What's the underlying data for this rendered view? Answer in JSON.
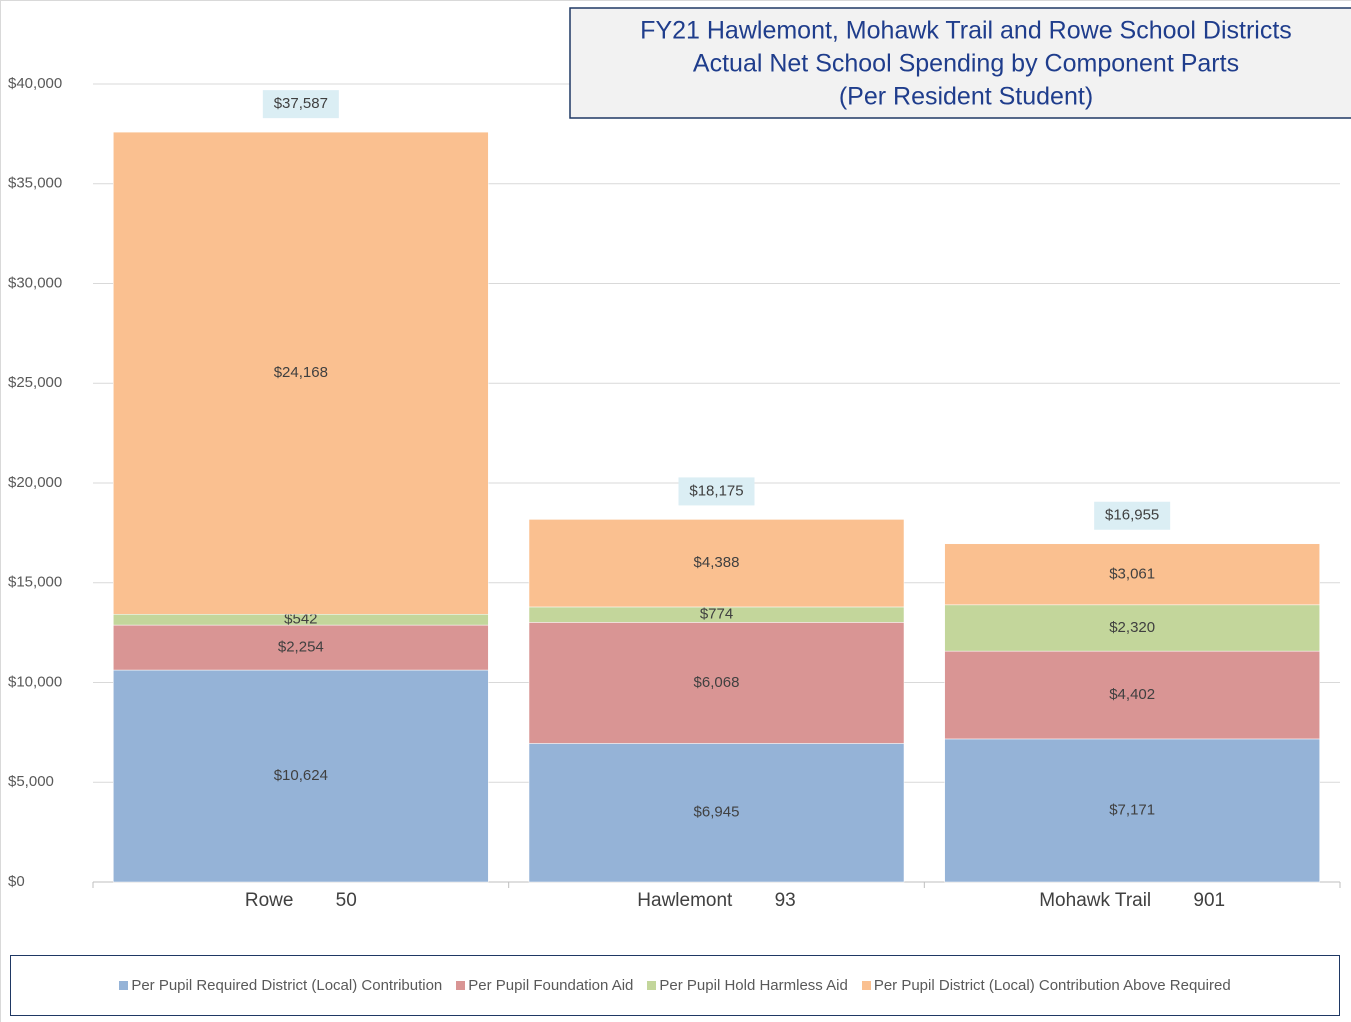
{
  "chart_data": {
    "type": "stacked_bar",
    "title": [
      "FY21 Hawlemont, Mohawk Trail and Rowe School Districts",
      "Actual Net School Spending by Component Parts",
      "(Per Resident Student)"
    ],
    "categories": [
      "Rowe        50",
      "Hawlemont        93",
      "Mohawk Trail        901"
    ],
    "series": [
      {
        "name": "Per Pupil Required District (Local) Contribution",
        "color": "#95b3d7",
        "values": [
          10624,
          6945,
          7171
        ],
        "value_labels": [
          "$10,624",
          "$6,945",
          "$7,171"
        ]
      },
      {
        "name": "Per Pupil Foundation Aid",
        "color": "#d99594",
        "values": [
          2254,
          6068,
          4402
        ],
        "value_labels": [
          "$2,254",
          "$6,068",
          "$4,402"
        ]
      },
      {
        "name": "Per Pupil Hold Harmless Aid",
        "color": "#c3d69b",
        "values": [
          542,
          774,
          2320
        ],
        "value_labels": [
          "$542",
          "$774",
          "$2,320"
        ]
      },
      {
        "name": "Per Pupil District (Local) Contribution Above Required",
        "color": "#fac090",
        "values": [
          24168,
          4388,
          3061
        ],
        "value_labels": [
          "$24,168",
          "$4,388",
          "$3,061"
        ]
      }
    ],
    "totals": [
      37587,
      18175,
      16955
    ],
    "totals_labels": [
      "$37,587",
      "$18,175",
      "$16,955"
    ],
    "ylim": [
      0,
      40000
    ],
    "yticks": [
      {
        "value": 0,
        "label": "$0"
      },
      {
        "value": 5000,
        "label": "$5,000"
      },
      {
        "value": 10000,
        "label": "$10,000"
      },
      {
        "value": 15000,
        "label": "$15,000"
      },
      {
        "value": 20000,
        "label": "$20,000"
      },
      {
        "value": 25000,
        "label": "$25,000"
      },
      {
        "value": 30000,
        "label": "$30,000"
      },
      {
        "value": 35000,
        "label": "$35,000"
      },
      {
        "value": 40000,
        "label": "$40,000"
      }
    ],
    "grid": true,
    "legend": "bottom"
  }
}
